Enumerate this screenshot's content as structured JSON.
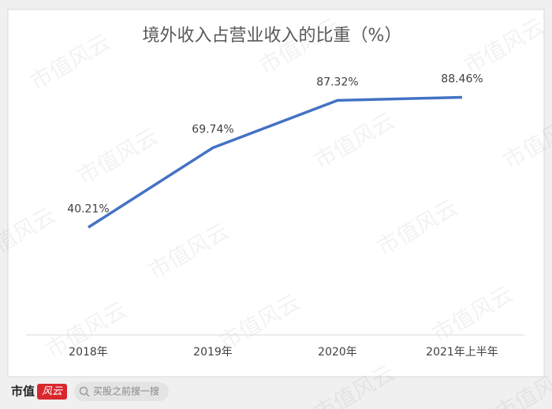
{
  "chart_data": {
    "type": "line",
    "title": "境外收入占营业收入的比重（%）",
    "categories": [
      "2018年",
      "2019年",
      "2020年",
      "2021年上半年"
    ],
    "values": [
      40.21,
      69.74,
      87.32,
      88.46
    ],
    "value_labels": [
      "40.21%",
      "69.74%",
      "87.32%",
      "88.46%"
    ],
    "color": "#4472c4",
    "ylim": [
      0,
      100
    ]
  },
  "watermark": "市值风云",
  "footer": {
    "logo": "市值",
    "stamp": "风云",
    "search": "买股之前搜一搜"
  }
}
